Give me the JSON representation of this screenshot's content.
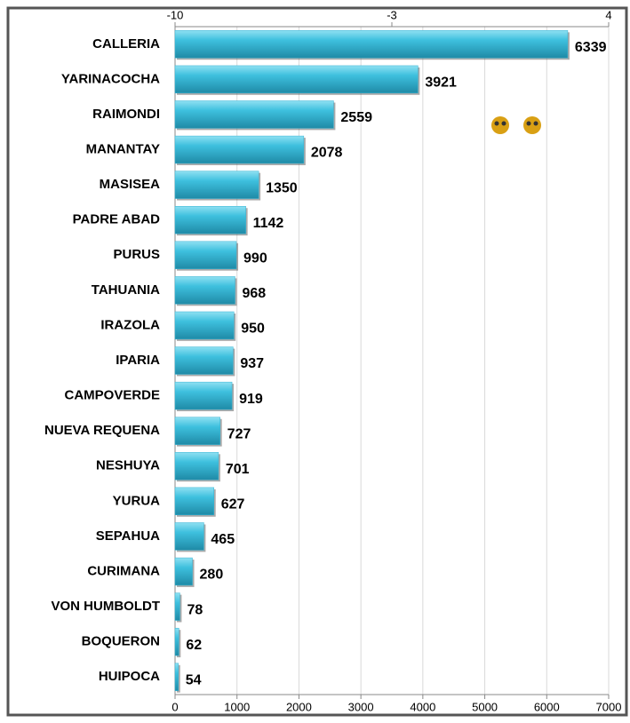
{
  "chart_data": {
    "type": "bar",
    "orientation": "horizontal",
    "categories": [
      "CALLERIA",
      "YARINACOCHA",
      "RAIMONDI",
      "MANANTAY",
      "MASISEA",
      "PADRE ABAD",
      "PURUS",
      "TAHUANIA",
      "IRAZOLA",
      "IPARIA",
      "CAMPOVERDE",
      "NUEVA REQUENA",
      "NESHUYA",
      "YURUA",
      "SEPAHUA",
      "CURIMANA",
      "VON HUMBOLDT",
      "BOQUERON",
      "HUIPOCA"
    ],
    "values": [
      6339,
      3921,
      2559,
      2078,
      1350,
      1142,
      990,
      968,
      950,
      937,
      919,
      727,
      701,
      627,
      465,
      280,
      78,
      62,
      54
    ],
    "color": "#35b3d3",
    "xlim": [
      0,
      7000
    ],
    "xticks": [
      0,
      1000,
      2000,
      3000,
      4000,
      5000,
      6000,
      7000
    ],
    "x2lim": [
      -10,
      4
    ],
    "x2ticks": [
      -10,
      -3,
      4
    ],
    "grid": true
  }
}
